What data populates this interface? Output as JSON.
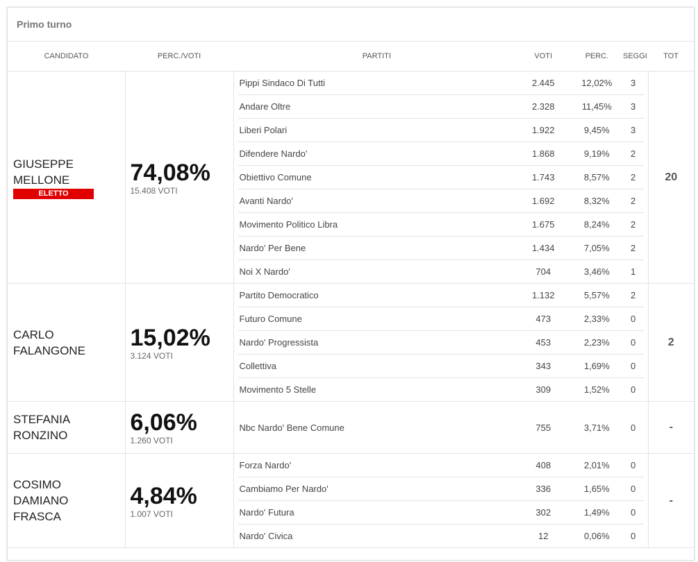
{
  "title": "Primo turno",
  "headers": {
    "candidato": "CANDIDATO",
    "perc_voti": "PERC./VOTI",
    "partiti": "PARTITI",
    "voti": "VOTI",
    "perc": "PERC.",
    "seggi": "SEGGI",
    "tot": "TOT"
  },
  "badge_color": "#e00000",
  "candidates": [
    {
      "name": "GIUSEPPE\nMELLONE",
      "badge": "ELETTO",
      "perc": "74,08%",
      "voti": "15.408 VOTI",
      "tot": "20",
      "parties": [
        {
          "name": "Pippi Sindaco Di Tutti",
          "voti": "2.445",
          "perc": "12,02%",
          "seggi": "3"
        },
        {
          "name": "Andare Oltre",
          "voti": "2.328",
          "perc": "11,45%",
          "seggi": "3"
        },
        {
          "name": "Liberi Polari",
          "voti": "1.922",
          "perc": "9,45%",
          "seggi": "3"
        },
        {
          "name": "Difendere Nardo'",
          "voti": "1.868",
          "perc": "9,19%",
          "seggi": "2"
        },
        {
          "name": "Obiettivo Comune",
          "voti": "1.743",
          "perc": "8,57%",
          "seggi": "2"
        },
        {
          "name": "Avanti Nardo'",
          "voti": "1.692",
          "perc": "8,32%",
          "seggi": "2"
        },
        {
          "name": "Movimento Politico Libra",
          "voti": "1.675",
          "perc": "8,24%",
          "seggi": "2"
        },
        {
          "name": "Nardo' Per Bene",
          "voti": "1.434",
          "perc": "7,05%",
          "seggi": "2"
        },
        {
          "name": "Noi X Nardo'",
          "voti": "704",
          "perc": "3,46%",
          "seggi": "1"
        }
      ]
    },
    {
      "name": "CARLO\nFALANGONE",
      "perc": "15,02%",
      "voti": "3.124 VOTI",
      "tot": "2",
      "parties": [
        {
          "name": "Partito Democratico",
          "voti": "1.132",
          "perc": "5,57%",
          "seggi": "2"
        },
        {
          "name": "Futuro Comune",
          "voti": "473",
          "perc": "2,33%",
          "seggi": "0"
        },
        {
          "name": "Nardo' Progressista",
          "voti": "453",
          "perc": "2,23%",
          "seggi": "0"
        },
        {
          "name": "Collettiva",
          "voti": "343",
          "perc": "1,69%",
          "seggi": "0"
        },
        {
          "name": "Movimento 5 Stelle",
          "voti": "309",
          "perc": "1,52%",
          "seggi": "0"
        }
      ]
    },
    {
      "name": "STEFANIA\nRONZINO",
      "perc": "6,06%",
      "voti": "1.260 VOTI",
      "tot": "-",
      "parties": [
        {
          "name": "Nbc Nardo' Bene Comune",
          "voti": "755",
          "perc": "3,71%",
          "seggi": "0"
        }
      ]
    },
    {
      "name": "COSIMO\nDAMIANO\nFRASCA",
      "perc": "4,84%",
      "voti": "1.007 VOTI",
      "tot": "-",
      "parties": [
        {
          "name": "Forza Nardo'",
          "voti": "408",
          "perc": "2,01%",
          "seggi": "0"
        },
        {
          "name": "Cambiamo Per Nardo'",
          "voti": "336",
          "perc": "1,65%",
          "seggi": "0"
        },
        {
          "name": "Nardo' Futura",
          "voti": "302",
          "perc": "1,49%",
          "seggi": "0"
        },
        {
          "name": "Nardo' Civica",
          "voti": "12",
          "perc": "0,06%",
          "seggi": "0"
        }
      ]
    }
  ]
}
